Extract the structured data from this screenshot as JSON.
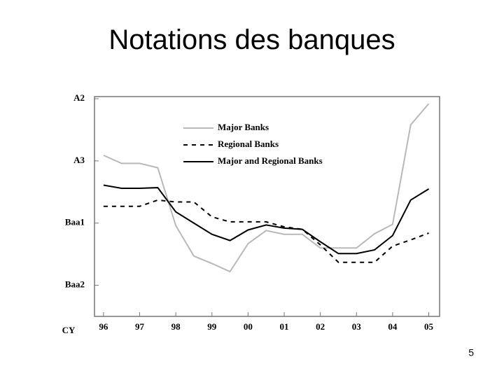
{
  "chart_data": {
    "type": "line",
    "title": "Notations des banques",
    "x_label": "CY",
    "x": [
      96,
      96.5,
      97,
      97.5,
      98,
      98.5,
      99,
      99.5,
      100,
      100.5,
      101,
      101.5,
      102,
      102.5,
      103,
      103.5,
      104,
      104.5,
      105
    ],
    "series": [
      {
        "name": "Major Banks",
        "color": "#b8b8b8",
        "dash": false,
        "values": [
          3.09,
          2.96,
          2.96,
          2.89,
          1.96,
          1.47,
          1.35,
          1.22,
          1.67,
          1.88,
          1.82,
          1.82,
          1.6,
          1.6,
          1.6,
          1.83,
          1.98,
          3.58,
          3.92
        ]
      },
      {
        "name": "Regional Banks",
        "color": "#000000",
        "dash": true,
        "values": [
          2.27,
          2.27,
          2.27,
          2.37,
          2.34,
          2.34,
          2.1,
          2.02,
          2.02,
          2.02,
          1.94,
          1.9,
          1.65,
          1.37,
          1.37,
          1.37,
          1.63,
          1.73,
          1.84
        ]
      },
      {
        "name": "Major and Regional Banks",
        "color": "#000000",
        "dash": false,
        "values": [
          2.61,
          2.56,
          2.56,
          2.57,
          2.18,
          2.0,
          1.82,
          1.72,
          1.89,
          1.97,
          1.92,
          1.9,
          1.7,
          1.51,
          1.51,
          1.57,
          1.8,
          2.37,
          2.55
        ]
      }
    ],
    "xlim": [
      95.75,
      105.3
    ],
    "xticks": [
      {
        "value": 96,
        "label": "96"
      },
      {
        "value": 97,
        "label": "97"
      },
      {
        "value": 98,
        "label": "98"
      },
      {
        "value": 99,
        "label": "99"
      },
      {
        "value": 100,
        "label": "00"
      },
      {
        "value": 101,
        "label": "01"
      },
      {
        "value": 102,
        "label": "02"
      },
      {
        "value": 103,
        "label": "03"
      },
      {
        "value": 104,
        "label": "04"
      },
      {
        "value": 105,
        "label": "05"
      }
    ],
    "ylim": [
      0.5,
      4
    ],
    "yticks": [
      {
        "value": 1,
        "label": "Baa2"
      },
      {
        "value": 2,
        "label": "Baa1"
      },
      {
        "value": 3,
        "label": "A3"
      },
      {
        "value": 4,
        "label": "A2"
      }
    ],
    "legend": "upper center"
  },
  "page_number": "5"
}
